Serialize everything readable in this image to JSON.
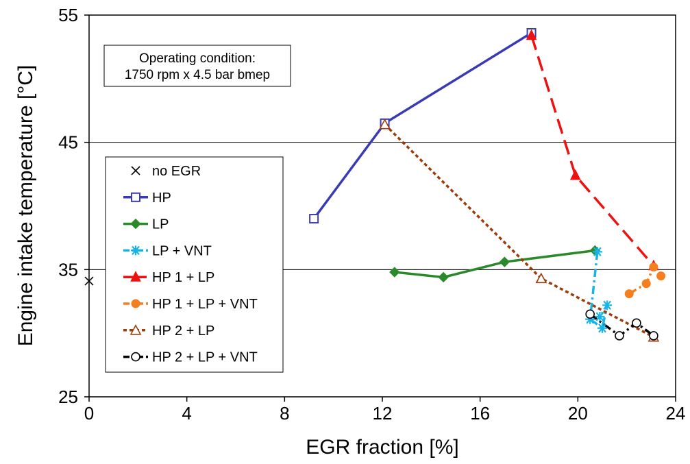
{
  "chart_data": {
    "type": "scatter",
    "title": "",
    "xlabel": "EGR fraction [%]",
    "ylabel": "Engine intake temperature [°C]",
    "xlim": [
      0,
      24
    ],
    "ylim": [
      25,
      55
    ],
    "xticks": [
      "0",
      "4",
      "8",
      "12",
      "16",
      "20",
      "24"
    ],
    "yticks": [
      "25",
      "35",
      "45",
      "55"
    ],
    "grid": "horizontal major lines at 35 and 45",
    "legend_position": "left-center",
    "annotation": {
      "line1": "Operating condition:",
      "line2": "1750 rpm x 4.5 bar bmep"
    },
    "series": [
      {
        "name": "no EGR",
        "color": "#000000",
        "marker": "x",
        "line": "none",
        "points": [
          [
            0.0,
            34.1
          ]
        ]
      },
      {
        "name": "HP",
        "color": "#3a3ab5",
        "marker": "open-square",
        "line": "solid",
        "points": [
          [
            9.2,
            39.0
          ],
          [
            12.1,
            46.5
          ],
          [
            18.1,
            53.6
          ]
        ]
      },
      {
        "name": "LP",
        "color": "#2a8a2a",
        "marker": "diamond",
        "line": "solid",
        "points": [
          [
            12.5,
            34.8
          ],
          [
            14.5,
            34.4
          ],
          [
            17.0,
            35.6
          ],
          [
            20.7,
            36.5
          ]
        ]
      },
      {
        "name": "LP + VNT",
        "color": "#19b4e6",
        "marker": "star",
        "line": "dashdot",
        "points": [
          [
            20.8,
            36.4
          ],
          [
            20.5,
            31.1
          ],
          [
            21.0,
            30.4
          ],
          [
            21.2,
            32.2
          ],
          [
            20.9,
            31.3
          ]
        ]
      },
      {
        "name": "HP 1 + LP",
        "color": "#ee1111",
        "marker": "triangle",
        "line": "dashed",
        "points": [
          [
            18.1,
            53.4
          ],
          [
            19.9,
            42.4
          ],
          [
            23.1,
            35.3
          ]
        ]
      },
      {
        "name": "HP 1 + LP + VNT",
        "color": "#f57f1f",
        "marker": "circle",
        "line": "dashdot",
        "points": [
          [
            22.1,
            33.1
          ],
          [
            22.8,
            33.9
          ],
          [
            23.1,
            35.2
          ],
          [
            23.4,
            34.5
          ]
        ]
      },
      {
        "name": "HP 2 + LP",
        "color": "#9c3d0d",
        "marker": "open-triangle",
        "line": "dotted",
        "points": [
          [
            12.1,
            46.4
          ],
          [
            18.5,
            34.3
          ],
          [
            23.1,
            29.7
          ]
        ]
      },
      {
        "name": "HP 2 + LP + VNT",
        "color": "#000000",
        "marker": "open-circle",
        "line": "dashdot",
        "points": [
          [
            20.5,
            31.5
          ],
          [
            21.7,
            29.8
          ],
          [
            22.4,
            30.8
          ],
          [
            23.1,
            29.8
          ]
        ]
      }
    ]
  }
}
